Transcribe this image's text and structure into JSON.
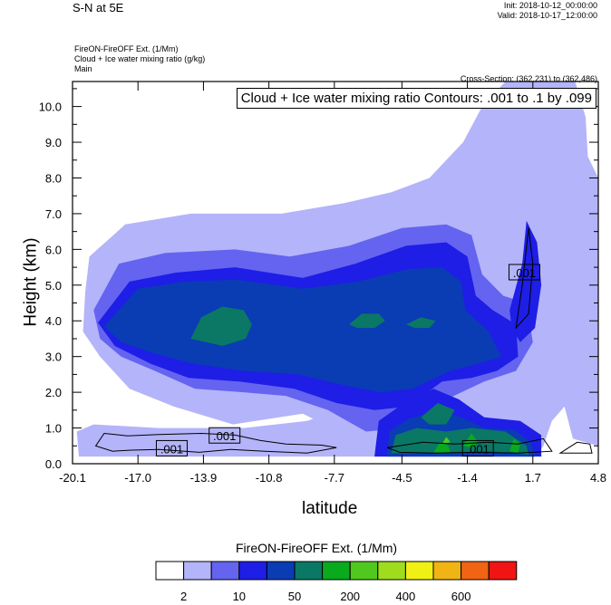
{
  "header": {
    "title": "S-N at 5E",
    "init": "Init: 2018-10-12_00:00:00",
    "valid": "Valid: 2018-10-17_12:00:00",
    "field1": "FireON-FireOFF Ext.   (1/Mm)",
    "field2": "Cloud + Ice water mixing ratio   (g/kg)",
    "field3": "Main",
    "cross_section": "Cross-Section: (362,231) to (362,486)"
  },
  "chart_data": {
    "type": "heatmap",
    "title": "Cloud + Ice water mixing ratio Contours: .001 to .1 by .099",
    "xlabel": "latitude",
    "ylabel": "Height (km)",
    "xlim": [
      -20.1,
      4.8
    ],
    "ylim": [
      0.0,
      10.7
    ],
    "x_ticks": [
      "-20.1",
      "-17.0",
      "-13.9",
      "-10.8",
      "-7.7",
      "-4.5",
      "-1.4",
      "1.7",
      "4.8"
    ],
    "x_tick_values": [
      -20.1,
      -17.0,
      -13.9,
      -10.8,
      -7.7,
      -4.5,
      -1.4,
      1.7,
      4.8
    ],
    "y_ticks": [
      "0.0",
      "1.0",
      "2.0",
      "3.0",
      "4.0",
      "5.0",
      "6.0",
      "7.0",
      "8.0",
      "9.0",
      "10.0"
    ],
    "y_tick_values": [
      0,
      1,
      2,
      3,
      4,
      5,
      6,
      7,
      8,
      9,
      10
    ],
    "contour_labels": [
      {
        "text": ".001",
        "x": -15.4,
        "y": 0.42
      },
      {
        "text": ".001",
        "x": -12.9,
        "y": 0.78
      },
      {
        "text": ".001",
        "x": -0.9,
        "y": 0.42
      },
      {
        "text": ".001",
        "x": 1.3,
        "y": 5.35
      }
    ],
    "colorbar": {
      "title": "FireON-FireOFF Ext.  (1/Mm)",
      "colors": [
        "#ffffff",
        "#b4b4fa",
        "#6464f0",
        "#1e1ee6",
        "#0a3cb4",
        "#0a7864",
        "#0aaa1e",
        "#50c81e",
        "#a0dc1e",
        "#f0f014",
        "#f0b414",
        "#f06414",
        "#f01414"
      ],
      "labels": [
        "2",
        "10",
        "50",
        "200",
        "400",
        "600"
      ]
    },
    "fill_regions": [
      {
        "level": 1,
        "points": [
          [
            -19.1,
            1.1
          ],
          [
            -16,
            1.0
          ],
          [
            -12,
            1.0
          ],
          [
            -9,
            1.2
          ],
          [
            -7,
            1.6
          ],
          [
            -5,
            2.4
          ],
          [
            -3,
            2.9
          ],
          [
            -1.5,
            3.4
          ],
          [
            -1,
            5.0
          ],
          [
            -0.8,
            6.2
          ],
          [
            0.2,
            7.8
          ],
          [
            1.3,
            9.7
          ],
          [
            1.4,
            10.7
          ],
          [
            3.7,
            10.7
          ],
          [
            4.2,
            9.7
          ],
          [
            4.3,
            8.6
          ],
          [
            4.8,
            8.0
          ],
          [
            4.8,
            0.5
          ],
          [
            3.6,
            0.7
          ],
          [
            3.2,
            1.6
          ],
          [
            2.6,
            1.2
          ],
          [
            2.2,
            0.5
          ],
          [
            1.8,
            0.2
          ],
          [
            -19.8,
            0.2
          ],
          [
            -19.9,
            0.9
          ]
        ]
      },
      {
        "level": 1,
        "points": [
          [
            -19.3,
            5.8
          ],
          [
            -17.6,
            6.7
          ],
          [
            -14.5,
            7.0
          ],
          [
            -10.2,
            7.0
          ],
          [
            -7.2,
            7.3
          ],
          [
            -5.0,
            7.6
          ],
          [
            -3.2,
            8.0
          ],
          [
            -1.6,
            9.0
          ],
          [
            -0.7,
            10.0
          ],
          [
            0.4,
            10.7
          ],
          [
            1.6,
            10.7
          ],
          [
            2.0,
            9.4
          ],
          [
            1.8,
            7.4
          ],
          [
            2.5,
            6.1
          ],
          [
            3.5,
            5.3
          ],
          [
            3.7,
            2.8
          ],
          [
            2.7,
            2.3
          ],
          [
            1.9,
            1.0
          ],
          [
            1.2,
            0.6
          ],
          [
            -5.5,
            0.6
          ],
          [
            -7.5,
            0.9
          ],
          [
            -9.2,
            1.4
          ],
          [
            -12.5,
            1.1
          ],
          [
            -15.3,
            1.6
          ],
          [
            -17.4,
            2.1
          ],
          [
            -18.8,
            3.0
          ],
          [
            -19.6,
            3.7
          ],
          [
            -19.5,
            4.8
          ]
        ]
      },
      {
        "level": 2,
        "points": [
          [
            -19.1,
            4.3
          ],
          [
            -17.9,
            5.6
          ],
          [
            -15.7,
            5.9
          ],
          [
            -12.4,
            6.0
          ],
          [
            -9.8,
            5.8
          ],
          [
            -7.0,
            6.1
          ],
          [
            -4.5,
            6.6
          ],
          [
            -2.4,
            6.7
          ],
          [
            -1.2,
            6.4
          ],
          [
            -0.7,
            5.3
          ],
          [
            0.3,
            4.7
          ],
          [
            1.4,
            4.5
          ],
          [
            1.7,
            3.4
          ],
          [
            0.9,
            2.6
          ],
          [
            -0.6,
            2.3
          ],
          [
            -2.4,
            1.8
          ],
          [
            -4.4,
            1.0
          ],
          [
            -6.2,
            0.9
          ],
          [
            -8.0,
            1.5
          ],
          [
            -10.0,
            1.9
          ],
          [
            -12.0,
            2.0
          ],
          [
            -14.3,
            2.1
          ],
          [
            -16.2,
            2.6
          ],
          [
            -17.8,
            3.0
          ],
          [
            -18.8,
            3.5
          ]
        ]
      },
      {
        "level": 3,
        "points": [
          [
            -18.9,
            3.95
          ],
          [
            -17.4,
            5.1
          ],
          [
            -15.2,
            5.35
          ],
          [
            -12.4,
            5.5
          ],
          [
            -9.2,
            5.2
          ],
          [
            -6.7,
            5.6
          ],
          [
            -4.3,
            6.1
          ],
          [
            -2.4,
            6.2
          ],
          [
            -1.4,
            5.8
          ],
          [
            -1.0,
            4.7
          ],
          [
            -0.2,
            4.3
          ],
          [
            0.9,
            3.9
          ],
          [
            1.0,
            3.0
          ],
          [
            0.0,
            2.6
          ],
          [
            -1.2,
            2.4
          ],
          [
            -2.6,
            2.3
          ],
          [
            -4.2,
            1.6
          ],
          [
            -5.8,
            1.5
          ],
          [
            -7.6,
            1.7
          ],
          [
            -9.6,
            2.1
          ],
          [
            -12.2,
            2.3
          ],
          [
            -14.6,
            2.4
          ],
          [
            -16.4,
            2.8
          ],
          [
            -18.1,
            3.3
          ]
        ]
      },
      {
        "level": 3,
        "points": [
          [
            0.6,
            4.3
          ],
          [
            1.2,
            5.6
          ],
          [
            1.4,
            6.8
          ],
          [
            1.9,
            6.2
          ],
          [
            2.1,
            5.0
          ],
          [
            1.8,
            3.8
          ],
          [
            1.1,
            3.4
          ],
          [
            0.7,
            3.8
          ]
        ]
      },
      {
        "level": 3,
        "points": [
          [
            -5.6,
            1.2
          ],
          [
            -4.4,
            1.7
          ],
          [
            -3.0,
            2.1
          ],
          [
            -1.8,
            1.8
          ],
          [
            -0.6,
            1.3
          ],
          [
            1.1,
            1.2
          ],
          [
            2.1,
            0.8
          ],
          [
            2.1,
            0.2
          ],
          [
            -5.8,
            0.2
          ]
        ]
      },
      {
        "level": 4,
        "points": [
          [
            -18.6,
            3.85
          ],
          [
            -17.0,
            4.9
          ],
          [
            -14.8,
            5.1
          ],
          [
            -12.3,
            5.15
          ],
          [
            -9.2,
            4.9
          ],
          [
            -6.6,
            5.1
          ],
          [
            -4.2,
            5.45
          ],
          [
            -2.6,
            5.5
          ],
          [
            -1.7,
            5.1
          ],
          [
            -1.5,
            4.3
          ],
          [
            -0.4,
            3.7
          ],
          [
            0.2,
            3.0
          ],
          [
            -0.9,
            2.8
          ],
          [
            -2.2,
            2.6
          ],
          [
            -4.0,
            2.1
          ],
          [
            -5.5,
            2.0
          ],
          [
            -7.3,
            2.2
          ],
          [
            -9.4,
            2.5
          ],
          [
            -12.0,
            2.6
          ],
          [
            -14.4,
            2.8
          ],
          [
            -16.3,
            3.1
          ],
          [
            -17.8,
            3.4
          ]
        ]
      },
      {
        "level": 4,
        "points": [
          [
            -5.2,
            0.2
          ],
          [
            -5.1,
            0.9
          ],
          [
            -4.2,
            1.25
          ],
          [
            -2.8,
            1.5
          ],
          [
            -1.7,
            1.3
          ],
          [
            -0.6,
            1.0
          ],
          [
            0.8,
            0.95
          ],
          [
            1.6,
            0.6
          ],
          [
            1.8,
            0.2
          ]
        ]
      },
      {
        "level": 5,
        "points": [
          [
            -14.5,
            3.5
          ],
          [
            -14.0,
            4.1
          ],
          [
            -13.0,
            4.4
          ],
          [
            -12.0,
            4.3
          ],
          [
            -11.6,
            3.9
          ],
          [
            -11.9,
            3.5
          ],
          [
            -13.0,
            3.3
          ]
        ]
      },
      {
        "level": 5,
        "points": [
          [
            -7.0,
            3.9
          ],
          [
            -6.4,
            4.2
          ],
          [
            -5.6,
            4.2
          ],
          [
            -5.3,
            4.0
          ],
          [
            -5.8,
            3.8
          ],
          [
            -6.6,
            3.8
          ]
        ]
      },
      {
        "level": 5,
        "points": [
          [
            -4.3,
            3.9
          ],
          [
            -3.6,
            4.1
          ],
          [
            -2.9,
            4.0
          ],
          [
            -3.2,
            3.8
          ],
          [
            -3.9,
            3.8
          ]
        ]
      },
      {
        "level": 5,
        "points": [
          [
            -3.6,
            1.3
          ],
          [
            -2.8,
            1.7
          ],
          [
            -2.0,
            1.5
          ],
          [
            -2.4,
            1.1
          ],
          [
            -3.2,
            1.1
          ]
        ]
      },
      {
        "level": 5,
        "points": [
          [
            -5.0,
            0.3
          ],
          [
            -4.8,
            0.8
          ],
          [
            -3.8,
            1.0
          ],
          [
            -2.4,
            0.9
          ],
          [
            -1.2,
            1.0
          ],
          [
            0.4,
            0.9
          ],
          [
            1.4,
            0.5
          ],
          [
            1.5,
            0.25
          ],
          [
            -0.4,
            0.35
          ],
          [
            -2.6,
            0.3
          ]
        ]
      },
      {
        "level": 6,
        "points": [
          [
            -3.0,
            0.3
          ],
          [
            -2.7,
            0.6
          ],
          [
            -2.3,
            0.5
          ],
          [
            -2.2,
            0.3
          ]
        ]
      },
      {
        "level": 6,
        "points": [
          [
            -1.6,
            0.5
          ],
          [
            -1.2,
            0.85
          ],
          [
            -0.9,
            0.6
          ],
          [
            -1.2,
            0.45
          ]
        ]
      },
      {
        "level": 6,
        "points": [
          [
            0.6,
            0.35
          ],
          [
            0.8,
            0.7
          ],
          [
            1.1,
            0.55
          ],
          [
            1.0,
            0.3
          ]
        ]
      },
      {
        "level": 7,
        "points": [
          [
            -2.6,
            0.55
          ],
          [
            -2.4,
            0.75
          ],
          [
            -2.2,
            0.6
          ]
        ]
      }
    ],
    "contour_lines": [
      [
        [
          -19.0,
          0.5
        ],
        [
          -18.6,
          0.85
        ],
        [
          -17.5,
          0.78
        ],
        [
          -16.0,
          0.82
        ],
        [
          -14.0,
          0.85
        ],
        [
          -12.4,
          0.8
        ],
        [
          -11.2,
          0.65
        ],
        [
          -10.0,
          0.55
        ],
        [
          -8.3,
          0.52
        ],
        [
          -7.6,
          0.45
        ],
        [
          -9.0,
          0.3
        ],
        [
          -11.0,
          0.35
        ],
        [
          -12.6,
          0.4
        ],
        [
          -14.1,
          0.32
        ],
        [
          -16.0,
          0.4
        ],
        [
          -17.3,
          0.38
        ],
        [
          -18.2,
          0.35
        ]
      ],
      [
        [
          -5.2,
          0.45
        ],
        [
          -3.5,
          0.6
        ],
        [
          -2.0,
          0.55
        ],
        [
          -0.4,
          0.6
        ],
        [
          1.0,
          0.55
        ],
        [
          2.2,
          0.7
        ],
        [
          2.6,
          0.35
        ],
        [
          1.0,
          0.3
        ],
        [
          -1.0,
          0.32
        ],
        [
          -3.0,
          0.3
        ],
        [
          -4.6,
          0.32
        ]
      ],
      [
        [
          0.9,
          3.8
        ],
        [
          1.2,
          5.0
        ],
        [
          1.5,
          6.6
        ],
        [
          1.7,
          5.6
        ],
        [
          1.5,
          4.2
        ]
      ],
      [
        [
          3.0,
          0.3
        ],
        [
          3.8,
          0.6
        ],
        [
          4.4,
          0.55
        ],
        [
          4.5,
          0.3
        ]
      ]
    ]
  }
}
